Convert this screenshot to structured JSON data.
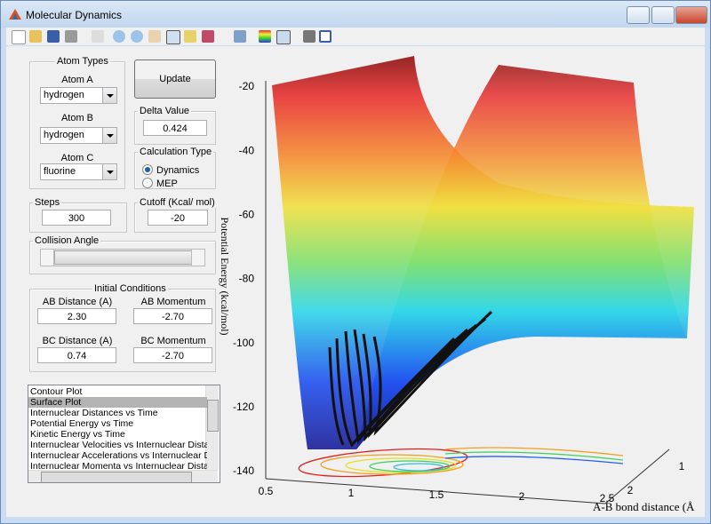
{
  "window": {
    "title": "Molecular Dynamics"
  },
  "atom_types": {
    "title": "Atom Types",
    "atom_a_label": "Atom A",
    "atom_a": "hydrogen",
    "atom_b_label": "Atom B",
    "atom_b": "hydrogen",
    "atom_c_label": "Atom C",
    "atom_c": "fluorine"
  },
  "update_button": "Update",
  "delta_value": {
    "label": "Delta Value",
    "value": "0.424"
  },
  "calculation_type": {
    "title": "Calculation Type",
    "options": [
      "Dynamics",
      "MEP"
    ],
    "selected": 0
  },
  "steps": {
    "label": "Steps",
    "value": "300"
  },
  "cutoff": {
    "label": "Cutoff (Kcal/ mol)",
    "value": "-20"
  },
  "collision_angle": {
    "label": "Collision Angle"
  },
  "initial_conditions": {
    "title": "Initial Conditions",
    "ab_distance_label": "AB Distance (A)",
    "ab_distance": "2.30",
    "ab_momentum_label": "AB Momentum",
    "ab_momentum": "-2.70",
    "bc_distance_label": "BC Distance (A)",
    "bc_distance": "0.74",
    "bc_momentum_label": "BC Momentum",
    "bc_momentum": "-2.70"
  },
  "plot_list": {
    "items": [
      "Contour Plot",
      "Surface Plot",
      "Internuclear Distances vs Time",
      "Potential Energy vs Time",
      "Kinetic Energy vs Time",
      "Internuclear Velocities vs Internuclear Distance",
      "Internuclear Accelerations vs Internuclear Dista",
      "Internuclear Momenta vs Internuclear Distance"
    ],
    "selected": 1
  },
  "plot": {
    "z_ticks": [
      -20,
      -40,
      -60,
      -80,
      -100,
      -120,
      -140
    ],
    "x_ticks": [
      0.5,
      1,
      1.5,
      2,
      2.5
    ],
    "y_ticks": [
      1,
      2
    ],
    "z_label": "Potential Energy (kcal/mol)",
    "x_label": "A-B bond distance (Å"
  }
}
